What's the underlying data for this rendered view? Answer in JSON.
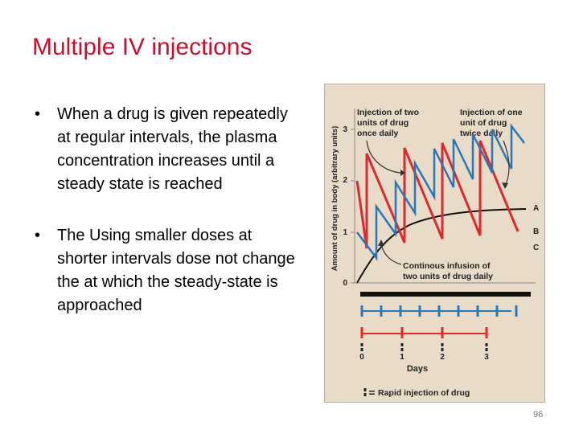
{
  "slide": {
    "title": "Multiple IV injections",
    "bullets": [
      "When a drug is given repeatedly at regular intervals, the plasma concentration increases until a steady state is reached",
      "The Using smaller doses at shorter intervals dose not change the at which the steady-state is approached"
    ],
    "bullet_char": "•",
    "page_number": "96"
  },
  "figure": {
    "ylabel": "Amount of drug in body (arbitrary units)",
    "y_ticks": [
      "0",
      "1",
      "2",
      "3"
    ],
    "annotation_left": [
      "Injection of two",
      "units of drug",
      "once daily"
    ],
    "annotation_right": [
      "Injection of one",
      "unit of drug",
      "twice daily"
    ],
    "annotation_bottom": [
      "Continous infusion of",
      "two units of drug daily"
    ],
    "curve_labels": [
      "A",
      "B",
      "C"
    ],
    "day_ticks": [
      "0",
      "1",
      "2",
      "3"
    ],
    "xlabel": "Days",
    "legend": "Rapid injection of drug",
    "colors": {
      "red": "#dd2a2e",
      "blue": "#2a77b8",
      "black": "#111111",
      "title": "#c8102e"
    }
  }
}
